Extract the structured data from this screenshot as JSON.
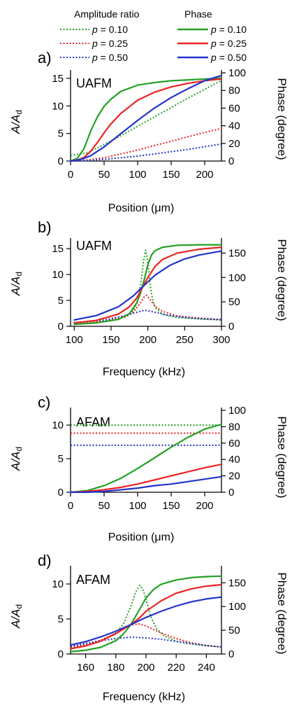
{
  "legend": {
    "amplitude_header": "Amplitude ratio",
    "phase_header": "Phase",
    "entries": [
      {
        "symbol": "p",
        "label": " = 0.10",
        "color": "#22a022"
      },
      {
        "symbol": "p",
        "label": " = 0.25",
        "color": "#ee2222"
      },
      {
        "symbol": "p",
        "label": " = 0.50",
        "color": "#2233cc"
      }
    ]
  },
  "colors": {
    "p010": "#22a022",
    "p025": "#ee2222",
    "p050": "#2233cc"
  },
  "chart_data": [
    {
      "panel_label": "a)",
      "inset_title": "UAFM",
      "type": "line",
      "xlabel": "Position (μm)",
      "ylabel_main": "A/A",
      "ylabel_sub": "d",
      "y2label": "Phase (degree)",
      "xlim": [
        0,
        225
      ],
      "ylim": [
        0,
        16
      ],
      "y2lim": [
        0,
        100
      ],
      "xticks": [
        0,
        50,
        100,
        150,
        200
      ],
      "yticks": [
        0,
        5,
        10,
        15
      ],
      "y2ticks": [
        0,
        20,
        40,
        60,
        80,
        100
      ],
      "series": [
        {
          "name": "p = 0.10",
          "kind": "amplitude",
          "color": "#22a022",
          "x": [
            0,
            25,
            50,
            75,
            100,
            125,
            150,
            175,
            200,
            225
          ],
          "y": [
            1.0,
            1.5,
            3.0,
            4.6,
            6.3,
            8.0,
            9.7,
            11.4,
            13.0,
            14.6
          ]
        },
        {
          "name": "p = 0.25",
          "kind": "amplitude",
          "color": "#ee2222",
          "x": [
            0,
            25,
            50,
            75,
            100,
            125,
            150,
            175,
            200,
            225
          ],
          "y": [
            0.0,
            0.2,
            0.6,
            1.3,
            2.0,
            2.8,
            3.6,
            4.4,
            5.2,
            5.9
          ]
        },
        {
          "name": "p = 0.50",
          "kind": "amplitude",
          "color": "#2233cc",
          "x": [
            0,
            25,
            50,
            75,
            100,
            125,
            150,
            175,
            200,
            225
          ],
          "y": [
            0.0,
            0.1,
            0.3,
            0.6,
            0.9,
            1.3,
            1.7,
            2.1,
            2.6,
            3.1
          ]
        },
        {
          "name": "p = 0.10",
          "kind": "phase",
          "color": "#22a022",
          "x": [
            0,
            10,
            20,
            30,
            40,
            50,
            60,
            75,
            100,
            125,
            150,
            175,
            200,
            225
          ],
          "y": [
            0,
            3,
            14,
            34,
            50,
            62,
            70,
            79,
            86,
            89,
            91,
            92,
            93,
            94
          ]
        },
        {
          "name": "p = 0.25",
          "kind": "phase",
          "color": "#ee2222",
          "x": [
            0,
            10,
            20,
            30,
            40,
            50,
            60,
            75,
            100,
            125,
            150,
            175,
            200,
            225
          ],
          "y": [
            0,
            1,
            4,
            11,
            21,
            32,
            42,
            54,
            69,
            78,
            84,
            88,
            91,
            93
          ]
        },
        {
          "name": "p = 0.50",
          "kind": "phase",
          "color": "#2233cc",
          "x": [
            0,
            10,
            20,
            30,
            40,
            50,
            60,
            75,
            100,
            125,
            150,
            175,
            200,
            225
          ],
          "y": [
            0,
            1,
            3,
            6,
            11,
            16,
            22,
            31,
            46,
            60,
            72,
            82,
            91,
            97
          ]
        }
      ]
    },
    {
      "panel_label": "b)",
      "inset_title": "UAFM",
      "type": "line",
      "xlabel": "Frequency (kHz)",
      "ylabel_main": "A/A",
      "ylabel_sub": "d",
      "y2label": "Phase (degree)",
      "xlim": [
        95,
        300
      ],
      "ylim": [
        0,
        16.5
      ],
      "y2lim": [
        0,
        175
      ],
      "xticks": [
        100,
        150,
        200,
        250,
        300
      ],
      "yticks": [
        0,
        5,
        10,
        15
      ],
      "y2ticks": [
        0,
        50,
        100,
        150
      ],
      "series": [
        {
          "name": "p = 0.10",
          "kind": "amplitude",
          "color": "#22a022",
          "x": [
            100,
            140,
            170,
            180,
            185,
            190,
            194,
            197,
            200,
            203,
            206,
            210,
            220,
            240,
            270,
            300
          ],
          "y": [
            0.6,
            1.0,
            1.9,
            3.0,
            4.4,
            7.8,
            12.5,
            14.7,
            12.5,
            8.2,
            5.4,
            3.6,
            2.3,
            1.7,
            1.4,
            1.2
          ]
        },
        {
          "name": "p = 0.25",
          "kind": "amplitude",
          "color": "#ee2222",
          "x": [
            100,
            140,
            170,
            180,
            190,
            195,
            198,
            202,
            210,
            220,
            240,
            270,
            300
          ],
          "y": [
            0.6,
            1.0,
            1.8,
            2.7,
            4.5,
            5.7,
            6.0,
            5.4,
            3.8,
            2.9,
            2.0,
            1.6,
            1.3
          ]
        },
        {
          "name": "p = 0.50",
          "kind": "amplitude",
          "color": "#2233cc",
          "x": [
            100,
            140,
            170,
            185,
            195,
            200,
            210,
            225,
            250,
            280,
            300
          ],
          "y": [
            0.7,
            1.2,
            2.1,
            2.7,
            3.1,
            3.0,
            2.7,
            2.2,
            1.7,
            1.4,
            1.3
          ]
        },
        {
          "name": "p = 0.10",
          "kind": "phase",
          "color": "#22a022",
          "x": [
            100,
            130,
            160,
            175,
            185,
            190,
            195,
            200,
            205,
            210,
            220,
            240,
            270,
            300
          ],
          "y": [
            4,
            7,
            14,
            26,
            48,
            68,
            95,
            126,
            146,
            155,
            162,
            166,
            167,
            167
          ]
        },
        {
          "name": "p = 0.25",
          "kind": "phase",
          "color": "#ee2222",
          "x": [
            100,
            130,
            160,
            175,
            185,
            195,
            200,
            210,
            220,
            240,
            270,
            300
          ],
          "y": [
            7,
            12,
            25,
            40,
            58,
            86,
            100,
            123,
            137,
            150,
            158,
            162
          ]
        },
        {
          "name": "p = 0.50",
          "kind": "phase",
          "color": "#2233cc",
          "x": [
            100,
            130,
            160,
            180,
            195,
            210,
            230,
            250,
            270,
            300
          ],
          "y": [
            13,
            22,
            40,
            62,
            84,
            105,
            125,
            138,
            146,
            154
          ]
        }
      ]
    },
    {
      "panel_label": "c)",
      "inset_title": "AFAM",
      "type": "line",
      "xlabel": "Position (μm)",
      "ylabel_main": "A/A",
      "ylabel_sub": "d",
      "y2label": "Phase (degree)",
      "xlim": [
        0,
        225
      ],
      "ylim": [
        0,
        12.2
      ],
      "y2lim": [
        0,
        100
      ],
      "xticks": [
        0,
        50,
        100,
        150,
        200
      ],
      "yticks": [
        0,
        5,
        10
      ],
      "y2ticks": [
        0,
        20,
        40,
        60,
        80,
        100
      ],
      "series": [
        {
          "name": "p = 0.10",
          "kind": "amplitude",
          "color": "#22a022",
          "x": [
            0,
            225
          ],
          "y": [
            10.0,
            10.0
          ]
        },
        {
          "name": "p = 0.25",
          "kind": "amplitude",
          "color": "#ee2222",
          "x": [
            0,
            225
          ],
          "y": [
            8.8,
            8.8
          ]
        },
        {
          "name": "p = 0.50",
          "kind": "amplitude",
          "color": "#2233cc",
          "x": [
            0,
            225
          ],
          "y": [
            7.0,
            7.0
          ]
        },
        {
          "name": "p = 0.10",
          "kind": "phase",
          "color": "#22a022",
          "x": [
            0,
            25,
            50,
            75,
            100,
            125,
            150,
            175,
            200,
            225
          ],
          "y": [
            0,
            2,
            8,
            17,
            29,
            42,
            55,
            67,
            77,
            83
          ]
        },
        {
          "name": "p = 0.25",
          "kind": "phase",
          "color": "#ee2222",
          "x": [
            0,
            25,
            50,
            75,
            100,
            125,
            150,
            175,
            200,
            225
          ],
          "y": [
            0,
            1,
            3,
            6,
            10,
            15,
            20,
            25,
            30,
            34
          ]
        },
        {
          "name": "p = 0.50",
          "kind": "phase",
          "color": "#2233cc",
          "x": [
            0,
            25,
            50,
            75,
            100,
            125,
            150,
            175,
            200,
            225
          ],
          "y": [
            0,
            0,
            1,
            3,
            5,
            8,
            10,
            13,
            16,
            19
          ]
        }
      ]
    },
    {
      "panel_label": "d)",
      "inset_title": "AFAM",
      "type": "line",
      "xlabel": "Frequency (kHz)",
      "ylabel_main": "A/A",
      "ylabel_sub": "d",
      "y2label": "Phase (degree)",
      "xlim": [
        150,
        250
      ],
      "ylim": [
        0,
        12.2
      ],
      "y2lim": [
        0,
        180
      ],
      "xticks": [
        160,
        180,
        200,
        220,
        240
      ],
      "yticks": [
        0,
        5,
        10
      ],
      "y2ticks": [
        0,
        50,
        100,
        150
      ],
      "series": [
        {
          "name": "p = 0.10",
          "kind": "amplitude",
          "color": "#22a022",
          "x": [
            150,
            160,
            170,
            180,
            185,
            190,
            193,
            196,
            198,
            200,
            203,
            207,
            212,
            220,
            230,
            240,
            250
          ],
          "y": [
            1.0,
            1.3,
            1.9,
            3.0,
            4.3,
            6.8,
            8.8,
            9.8,
            9.2,
            7.8,
            5.4,
            3.6,
            2.6,
            1.8,
            1.4,
            1.2,
            1.0
          ]
        },
        {
          "name": "p = 0.25",
          "kind": "amplitude",
          "color": "#ee2222",
          "x": [
            150,
            160,
            170,
            180,
            185,
            190,
            195,
            200,
            210,
            220,
            230,
            240,
            250
          ],
          "y": [
            1.0,
            1.4,
            2.0,
            2.9,
            3.6,
            4.1,
            4.3,
            4.0,
            3.0,
            2.2,
            1.6,
            1.2,
            1.0
          ]
        },
        {
          "name": "p = 0.50",
          "kind": "amplitude",
          "color": "#2233cc",
          "x": [
            150,
            160,
            170,
            180,
            190,
            200,
            210,
            220,
            230,
            240,
            250
          ],
          "y": [
            1.1,
            1.5,
            1.9,
            2.2,
            2.4,
            2.3,
            2.1,
            1.8,
            1.5,
            1.2,
            1.0
          ]
        },
        {
          "name": "p = 0.10",
          "kind": "phase",
          "color": "#22a022",
          "x": [
            150,
            160,
            170,
            180,
            185,
            190,
            195,
            200,
            205,
            210,
            220,
            230,
            240,
            250
          ],
          "y": [
            5,
            8,
            14,
            28,
            42,
            62,
            90,
            118,
            136,
            147,
            156,
            161,
            163,
            164
          ]
        },
        {
          "name": "p = 0.25",
          "kind": "phase",
          "color": "#ee2222",
          "x": [
            150,
            160,
            170,
            180,
            190,
            195,
            200,
            210,
            220,
            230,
            240,
            250
          ],
          "y": [
            11,
            17,
            27,
            43,
            62,
            74,
            90,
            112,
            128,
            137,
            143,
            146
          ]
        },
        {
          "name": "p = 0.50",
          "kind": "phase",
          "color": "#2233cc",
          "x": [
            150,
            160,
            170,
            180,
            190,
            200,
            210,
            220,
            230,
            240,
            250
          ],
          "y": [
            19,
            26,
            36,
            48,
            62,
            77,
            90,
            101,
            110,
            116,
            120
          ]
        }
      ]
    }
  ]
}
